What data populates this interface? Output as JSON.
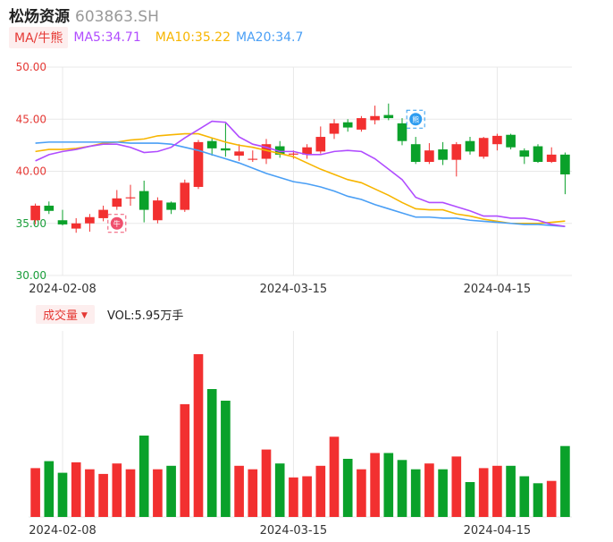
{
  "header": {
    "name": "松炀资源",
    "code": "603863.SH"
  },
  "ma_bar": {
    "label": "MA/牛熊",
    "ma5": "MA5:34.71",
    "ma10": "MA10:35.22",
    "ma20": "MA20:34.7"
  },
  "volume_bar": {
    "label": "成交量",
    "text": "VOL:5.95万手"
  },
  "colors": {
    "up": "#f23030",
    "down": "#0aa12a",
    "ma5": "#b04cff",
    "ma10": "#f7b500",
    "ma20": "#4a9ff5",
    "grid": "#e8e8e8",
    "ytick_red": "#e53935",
    "ytick_green": "#1a9e3a",
    "badge_red": "#f0506e",
    "badge_blue": "#2d9cf0"
  },
  "badges": {
    "bull": "牛",
    "bear": "熊"
  },
  "chart_data": [
    {
      "type": "candlestick",
      "ylim": [
        30,
        50
      ],
      "y_ticks": [
        "30.00",
        "35.00",
        "40.00",
        "45.00",
        "50.00"
      ],
      "x_ticks": [
        "2024-02-08",
        "2024-03-15",
        "2024-04-15"
      ],
      "candles": [
        {
          "o": 35.3,
          "c": 36.7,
          "h": 36.9,
          "l": 34.9
        },
        {
          "o": 36.7,
          "c": 36.2,
          "h": 37.1,
          "l": 35.9
        },
        {
          "o": 35.3,
          "c": 34.9,
          "h": 36.3,
          "l": 34.8
        },
        {
          "o": 34.5,
          "c": 35.0,
          "h": 35.5,
          "l": 34.1
        },
        {
          "o": 35.0,
          "c": 35.6,
          "h": 35.9,
          "l": 34.2
        },
        {
          "o": 35.5,
          "c": 36.3,
          "h": 36.7,
          "l": 35.2
        },
        {
          "o": 36.6,
          "c": 37.4,
          "h": 38.2,
          "l": 36.3
        },
        {
          "o": 37.4,
          "c": 37.5,
          "h": 38.7,
          "l": 36.7
        },
        {
          "o": 38.1,
          "c": 36.3,
          "h": 39.1,
          "l": 35.1
        },
        {
          "o": 35.3,
          "c": 37.2,
          "h": 37.5,
          "l": 35.0
        },
        {
          "o": 37.0,
          "c": 36.3,
          "h": 37.1,
          "l": 35.9
        },
        {
          "o": 36.3,
          "c": 38.9,
          "h": 39.2,
          "l": 36.1
        },
        {
          "o": 38.5,
          "c": 42.8,
          "h": 43.0,
          "l": 38.3
        },
        {
          "o": 42.9,
          "c": 42.2,
          "h": 43.2,
          "l": 41.5
        },
        {
          "o": 42.2,
          "c": 42.0,
          "h": 44.6,
          "l": 41.4
        },
        {
          "o": 41.5,
          "c": 41.9,
          "h": 42.6,
          "l": 41.0
        },
        {
          "o": 41.1,
          "c": 41.2,
          "h": 42.0,
          "l": 40.9
        },
        {
          "o": 41.2,
          "c": 42.6,
          "h": 43.1,
          "l": 40.7
        },
        {
          "o": 42.4,
          "c": 41.6,
          "h": 42.9,
          "l": 41.3
        },
        {
          "o": 41.6,
          "c": 41.7,
          "h": 42.0,
          "l": 41.2
        },
        {
          "o": 41.6,
          "c": 42.3,
          "h": 42.6,
          "l": 41.2
        },
        {
          "o": 41.9,
          "c": 43.3,
          "h": 44.3,
          "l": 41.7
        },
        {
          "o": 43.6,
          "c": 44.6,
          "h": 45.0,
          "l": 43.1
        },
        {
          "o": 44.7,
          "c": 44.2,
          "h": 45.0,
          "l": 43.8
        },
        {
          "o": 44.0,
          "c": 45.1,
          "h": 45.3,
          "l": 43.8
        },
        {
          "o": 44.9,
          "c": 45.3,
          "h": 46.3,
          "l": 44.5
        },
        {
          "o": 45.4,
          "c": 45.1,
          "h": 46.5,
          "l": 44.9
        },
        {
          "o": 44.6,
          "c": 42.9,
          "h": 45.1,
          "l": 42.5
        },
        {
          "o": 42.6,
          "c": 40.9,
          "h": 43.3,
          "l": 40.7
        },
        {
          "o": 40.9,
          "c": 42.0,
          "h": 42.7,
          "l": 40.7
        },
        {
          "o": 42.1,
          "c": 41.1,
          "h": 42.8,
          "l": 40.6
        },
        {
          "o": 41.1,
          "c": 42.6,
          "h": 42.8,
          "l": 39.5
        },
        {
          "o": 42.9,
          "c": 41.9,
          "h": 43.3,
          "l": 41.6
        },
        {
          "o": 41.4,
          "c": 43.2,
          "h": 43.3,
          "l": 41.2
        },
        {
          "o": 42.6,
          "c": 43.4,
          "h": 43.6,
          "l": 42.0
        },
        {
          "o": 43.5,
          "c": 42.3,
          "h": 43.6,
          "l": 42.1
        },
        {
          "o": 42.0,
          "c": 41.4,
          "h": 42.2,
          "l": 40.7
        },
        {
          "o": 42.4,
          "c": 40.9,
          "h": 42.6,
          "l": 40.8
        },
        {
          "o": 40.9,
          "c": 41.6,
          "h": 42.3,
          "l": 40.8
        },
        {
          "o": 41.6,
          "c": 39.7,
          "h": 41.8,
          "l": 37.8
        }
      ],
      "ma5": [
        41.0,
        41.6,
        41.9,
        42.1,
        42.4,
        42.6,
        42.6,
        42.3,
        41.8,
        41.9,
        42.3,
        43.2,
        44.0,
        44.8,
        44.7,
        43.3,
        42.6,
        42.3,
        41.9,
        41.9,
        41.6,
        41.6,
        41.9,
        42.0,
        41.9,
        41.2,
        40.2,
        39.2,
        37.5,
        37.0,
        37.0,
        36.6,
        36.2,
        35.7,
        35.7,
        35.5,
        35.5,
        35.3,
        34.9,
        34.71
      ],
      "ma10": [
        41.9,
        42.1,
        42.1,
        42.2,
        42.4,
        42.7,
        42.8,
        43.0,
        43.1,
        43.4,
        43.5,
        43.6,
        43.6,
        43.2,
        42.8,
        42.5,
        42.3,
        42.0,
        41.7,
        41.4,
        40.8,
        40.2,
        39.7,
        39.2,
        38.9,
        38.3,
        37.7,
        37.0,
        36.4,
        36.3,
        36.3,
        35.9,
        35.7,
        35.4,
        35.2,
        35.0,
        35.0,
        35.0,
        35.1,
        35.22
      ],
      "ma20": [
        42.7,
        42.8,
        42.8,
        42.8,
        42.8,
        42.8,
        42.8,
        42.7,
        42.7,
        42.7,
        42.6,
        42.3,
        42.0,
        41.6,
        41.2,
        40.8,
        40.3,
        39.8,
        39.4,
        39.0,
        38.8,
        38.5,
        38.1,
        37.6,
        37.3,
        36.8,
        36.4,
        36.0,
        35.6,
        35.6,
        35.5,
        35.5,
        35.3,
        35.2,
        35.1,
        35.0,
        34.9,
        34.9,
        34.8,
        34.7
      ]
    },
    {
      "type": "bar",
      "values": [
        21.0,
        24.0,
        19.0,
        23.5,
        20.5,
        18.5,
        23.0,
        20.5,
        35.0,
        20.5,
        22.0,
        48.5,
        70.0,
        55.0,
        50.0,
        22.0,
        20.5,
        29.0,
        23.0,
        17.0,
        17.5,
        22.0,
        34.5,
        25.0,
        20.5,
        27.5,
        27.5,
        24.5,
        20.5,
        23.0,
        20.5,
        26.0,
        15.0,
        21.0,
        22.0,
        22.0,
        17.5,
        14.5,
        15.5,
        30.5
      ],
      "x_ticks": [
        "2024-02-08",
        "2024-03-15",
        "2024-04-15"
      ]
    }
  ]
}
